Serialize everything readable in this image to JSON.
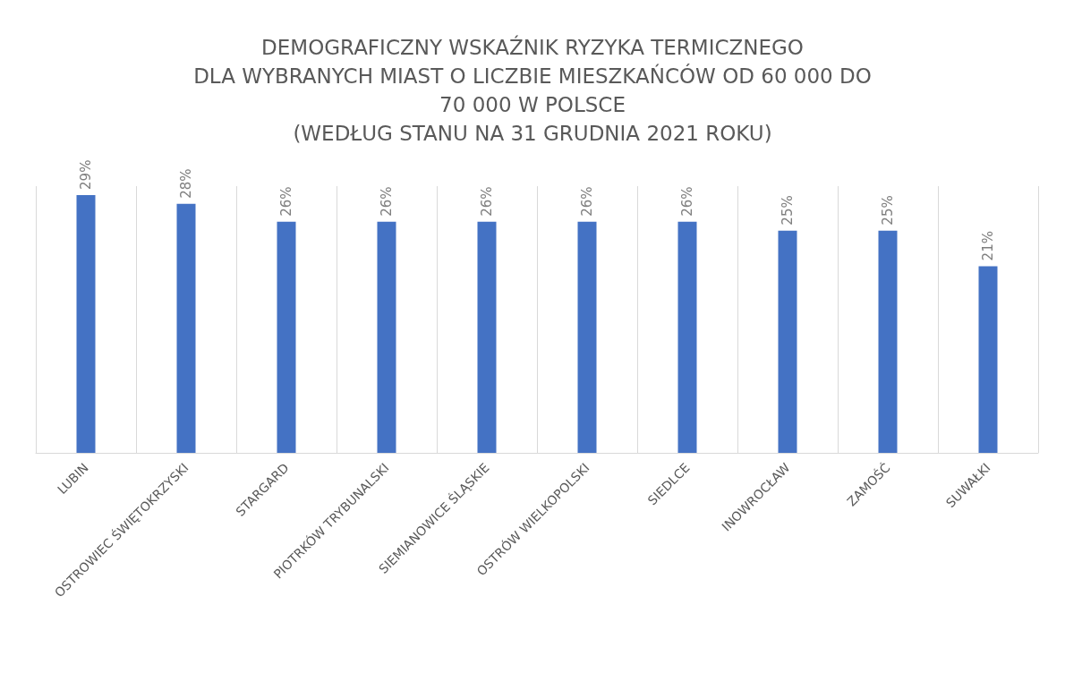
{
  "chart_data": {
    "type": "bar",
    "title": "DEMOGRAFICZNY WSKAŹNIK RYZYKA TERMICZNEGO\nDLA WYBRANYCH MIAST O LICZBIE MIESZKAŃCÓW OD 60 000 DO\n70 000 W POLSCE\n(WEDŁUG STANU NA 31 GRUDNIA 2021 ROKU)",
    "categories": [
      "LUBIN",
      "OSTROWIEC ŚWIĘTOKRZYSKI",
      "STARGARD",
      "PIOTRKÓW TRYBUNALSKI",
      "SIEMIANOWICE ŚLĄSKIE",
      "OSTRÓW WIELKOPOLSKI",
      "SIEDLCE",
      "INOWROCŁAW",
      "ZAMOŚĆ",
      "SUWAŁKI"
    ],
    "values": [
      29,
      28,
      26,
      26,
      26,
      26,
      26,
      25,
      25,
      21
    ],
    "value_labels": [
      "29%",
      "28%",
      "26%",
      "26%",
      "26%",
      "26%",
      "26%",
      "25%",
      "25%",
      "21%"
    ],
    "color": "#4472c4",
    "grid": "x"
  }
}
